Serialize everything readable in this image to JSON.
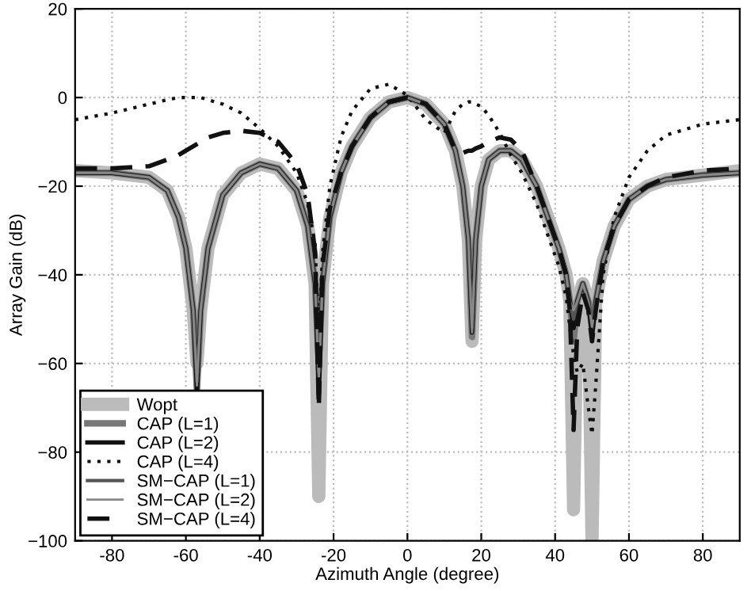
{
  "chart_data": {
    "type": "line",
    "xlabel": "Azimuth Angle (degree)",
    "ylabel": "Array Gain (dB)",
    "x": [
      -90,
      -80,
      -70,
      -65,
      -62,
      -60,
      -58,
      -57,
      -56,
      -54,
      -50,
      -45,
      -40,
      -35,
      -30,
      -27,
      -25,
      -24,
      -23,
      -21,
      -18,
      -15,
      -10,
      -5,
      0,
      5,
      10,
      13,
      15,
      16.5,
      17.5,
      18.5,
      20,
      22,
      25,
      28,
      31,
      35,
      38,
      41,
      43,
      44,
      45,
      46,
      47.5,
      49,
      50,
      51,
      53,
      56,
      60,
      65,
      70,
      80,
      90
    ],
    "series": [
      {
        "name": "Wopt",
        "color": "#bbbbbb",
        "values": [
          -16.5,
          -17,
          -18,
          -21,
          -27,
          -34,
          -48,
          -60,
          -48,
          -34,
          -22,
          -17,
          -15,
          -16,
          -21,
          -29,
          -42,
          -90,
          -42,
          -27,
          -17,
          -11,
          -4.5,
          -1,
          0,
          -1.5,
          -6,
          -12,
          -20,
          -32,
          -55,
          -32,
          -20,
          -14,
          -12,
          -12,
          -14,
          -20,
          -27,
          -34,
          -40,
          -46,
          -93,
          -46,
          -42,
          -46,
          -100,
          -46,
          -37,
          -29,
          -23,
          -20,
          -18.5,
          -17.5,
          -16.5
        ]
      },
      {
        "name": "CAP (L=1)",
        "color": "#777777",
        "values": [
          -17,
          -17,
          -18,
          -21,
          -27,
          -34,
          -48,
          -66,
          -48,
          -34,
          -22,
          -17,
          -15,
          -16,
          -21,
          -29,
          -42,
          -60,
          -42,
          -27,
          -17,
          -11,
          -4.5,
          -1,
          0,
          -1.5,
          -6,
          -12,
          -20,
          -32,
          -54,
          -32,
          -20,
          -14,
          -12,
          -12,
          -14,
          -20,
          -27,
          -34,
          -40,
          -46,
          -55,
          -46,
          -42,
          -46,
          -52,
          -46,
          -37,
          -29,
          -23,
          -20,
          -18.5,
          -17.5,
          -17
        ]
      },
      {
        "name": "CAP (L=2)",
        "color": "#111111",
        "values": [
          -17,
          -17,
          -18,
          -21,
          -27,
          -34,
          -48,
          -66,
          -48,
          -34,
          -22,
          -17,
          -15,
          -16,
          -21,
          -29,
          -42,
          -67,
          -42,
          -27,
          -17,
          -11,
          -4.5,
          -1,
          0,
          -1.5,
          -6,
          -12,
          -20,
          -32,
          -53,
          -32,
          -20,
          -14,
          -12,
          -12,
          -14,
          -20,
          -27,
          -34,
          -40,
          -46,
          -52,
          -46,
          -42,
          -46,
          -54,
          -46,
          -37,
          -29,
          -23,
          -20,
          -18.5,
          -17.5,
          -17
        ]
      },
      {
        "name": "CAP (L=4)",
        "color": "#111111",
        "line_style": "dotted",
        "values": [
          -5,
          -3.5,
          -1.5,
          -0.5,
          0,
          0,
          0,
          0,
          0,
          -0.5,
          -1.5,
          -3.5,
          -7,
          -11,
          -17,
          -24,
          -33,
          -55,
          -35,
          -20,
          -9,
          -3,
          2,
          3,
          0.5,
          -5,
          -8,
          -3,
          -1.5,
          -1,
          -1,
          -1.5,
          -2,
          -4,
          -8,
          -13,
          -17,
          -24,
          -31,
          -38,
          -45,
          -52,
          -58,
          -62,
          -60,
          -70,
          -76,
          -65,
          -40,
          -27,
          -18,
          -12,
          -8.5,
          -6,
          -5
        ]
      },
      {
        "name": "SM−CAP (L=1)",
        "color": "#555555",
        "values": [
          -17,
          -17,
          -18,
          -21,
          -27,
          -34,
          -48,
          -64,
          -48,
          -34,
          -22,
          -17,
          -15,
          -16,
          -21,
          -29,
          -42,
          -62,
          -42,
          -27,
          -17,
          -11,
          -4.5,
          -1,
          0,
          -1.5,
          -6,
          -12,
          -20,
          -32,
          -52,
          -32,
          -20,
          -14,
          -12,
          -12,
          -14,
          -20,
          -27,
          -34,
          -40,
          -46,
          -50,
          -46,
          -42,
          -46,
          -50,
          -46,
          -37,
          -29,
          -23,
          -20,
          -18.5,
          -17.5,
          -17
        ]
      },
      {
        "name": "SM−CAP (L=2)",
        "color": "#888888",
        "values": [
          -17,
          -17,
          -18,
          -21,
          -27,
          -34,
          -48,
          -65,
          -48,
          -34,
          -22,
          -17,
          -15,
          -16,
          -21,
          -29,
          -42,
          -64,
          -42,
          -27,
          -17,
          -11,
          -4.5,
          -1,
          0,
          -1.5,
          -6,
          -12,
          -20,
          -32,
          -53,
          -32,
          -20,
          -14,
          -12,
          -12,
          -14,
          -20,
          -27,
          -34,
          -40,
          -46,
          -48,
          -46,
          -42,
          -46,
          -52,
          -46,
          -37,
          -29,
          -23,
          -20,
          -18.5,
          -17.5,
          -17
        ]
      },
      {
        "name": "SM−CAP (L=4)",
        "color": "#111111",
        "line_style": "dashed",
        "values": [
          -16,
          -16,
          -15.5,
          -14,
          -13,
          -12,
          -11,
          -10.5,
          -10,
          -9,
          -8,
          -7.5,
          -8,
          -10,
          -15,
          -22,
          -35,
          -70,
          -38,
          -25,
          -17,
          -11,
          -4.5,
          -1,
          0,
          -1.5,
          -6,
          -12,
          -12.5,
          -12,
          -12,
          -11.5,
          -11,
          -10,
          -9,
          -9.5,
          -12,
          -20,
          -27,
          -34,
          -40,
          -48,
          -75,
          -52,
          -44,
          -48,
          -55,
          -48,
          -37,
          -29,
          -23,
          -20,
          -18,
          -16.5,
          -16
        ]
      }
    ],
    "xlim": [
      -90,
      90
    ],
    "xticks": [
      -80,
      -60,
      -40,
      -20,
      0,
      20,
      40,
      60,
      80
    ],
    "ylim": [
      -100,
      20
    ],
    "yticks": [
      -100,
      -80,
      -60,
      -40,
      -20,
      0,
      20
    ],
    "grid": true,
    "legend": "bottom left",
    "marker": "none"
  }
}
